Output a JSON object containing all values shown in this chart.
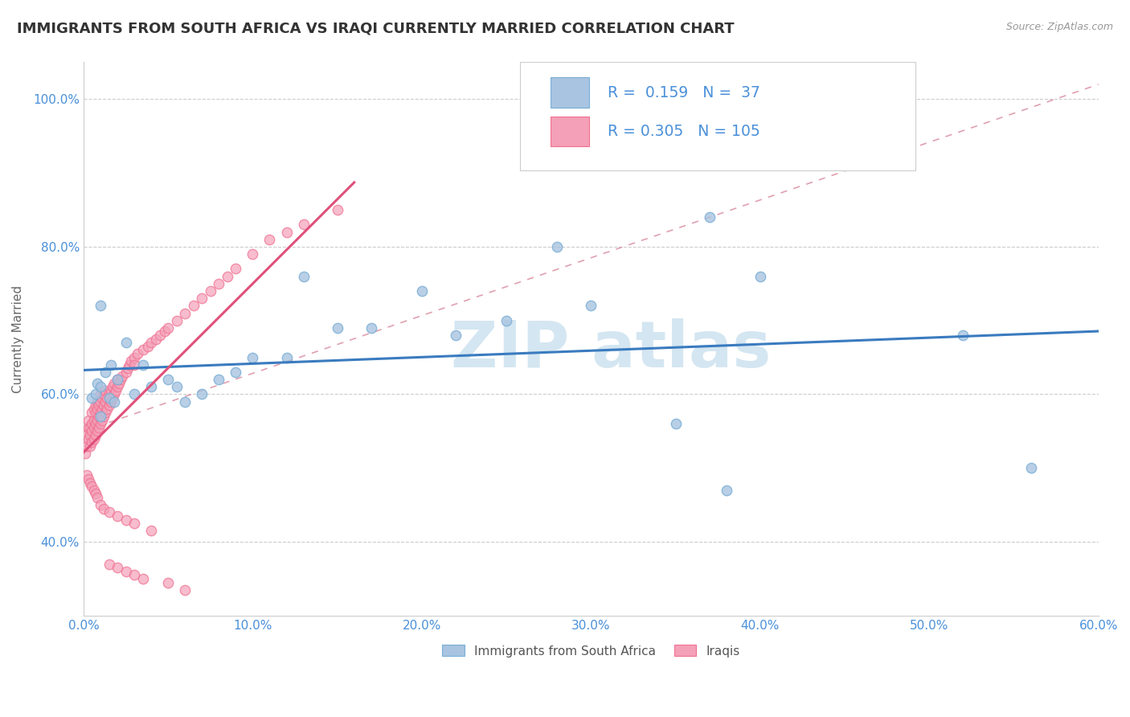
{
  "title": "IMMIGRANTS FROM SOUTH AFRICA VS IRAQI CURRENTLY MARRIED CORRELATION CHART",
  "source": "Source: ZipAtlas.com",
  "ylabel": "Currently Married",
  "xlim": [
    0.0,
    0.6
  ],
  "ylim": [
    0.3,
    1.05
  ],
  "xtick_labels": [
    "0.0%",
    "10.0%",
    "20.0%",
    "30.0%",
    "40.0%",
    "50.0%",
    "60.0%"
  ],
  "ytick_labels": [
    "40.0%",
    "60.0%",
    "80.0%",
    "100.0%"
  ],
  "ytick_vals": [
    0.4,
    0.6,
    0.8,
    1.0
  ],
  "xtick_vals": [
    0.0,
    0.1,
    0.2,
    0.3,
    0.4,
    0.5,
    0.6
  ],
  "legend_R1": "0.159",
  "legend_N1": "37",
  "legend_R2": "0.305",
  "legend_N2": "105",
  "color_sa_fill": "#a8c4e0",
  "color_iq_fill": "#f4a0b8",
  "color_sa_edge": "#7aaed6",
  "color_iq_edge": "#f07090",
  "color_trendline_sa": "#3a7bbf",
  "color_trendline_iq": "#e0507a",
  "color_refline": "#e0a0b0",
  "background_color": "#ffffff",
  "title_color": "#333333",
  "title_fontsize": 13,
  "tick_color": "#4a90d9",
  "legend_text_color": "#4a90d9",
  "watermark_color": "#d0e4f0",
  "sa_x": [
    0.005,
    0.007,
    0.008,
    0.01,
    0.01,
    0.01,
    0.013,
    0.015,
    0.016,
    0.018,
    0.02,
    0.025,
    0.03,
    0.035,
    0.04,
    0.05,
    0.055,
    0.06,
    0.07,
    0.08,
    0.09,
    0.1,
    0.12,
    0.13,
    0.15,
    0.17,
    0.2,
    0.22,
    0.25,
    0.28,
    0.3,
    0.35,
    0.37,
    0.4,
    0.52,
    0.56,
    0.38
  ],
  "sa_y": [
    0.595,
    0.6,
    0.615,
    0.72,
    0.57,
    0.61,
    0.63,
    0.595,
    0.64,
    0.59,
    0.62,
    0.67,
    0.6,
    0.64,
    0.61,
    0.62,
    0.61,
    0.59,
    0.6,
    0.62,
    0.63,
    0.65,
    0.65,
    0.76,
    0.69,
    0.69,
    0.74,
    0.68,
    0.7,
    0.8,
    0.72,
    0.56,
    0.84,
    0.76,
    0.68,
    0.5,
    0.47
  ],
  "iq_x": [
    0.001,
    0.002,
    0.002,
    0.003,
    0.003,
    0.003,
    0.004,
    0.004,
    0.004,
    0.005,
    0.005,
    0.005,
    0.005,
    0.006,
    0.006,
    0.006,
    0.006,
    0.007,
    0.007,
    0.007,
    0.007,
    0.008,
    0.008,
    0.008,
    0.008,
    0.009,
    0.009,
    0.009,
    0.01,
    0.01,
    0.01,
    0.01,
    0.011,
    0.011,
    0.011,
    0.012,
    0.012,
    0.012,
    0.013,
    0.013,
    0.013,
    0.014,
    0.014,
    0.015,
    0.015,
    0.016,
    0.016,
    0.017,
    0.017,
    0.018,
    0.018,
    0.019,
    0.02,
    0.02,
    0.021,
    0.022,
    0.023,
    0.025,
    0.026,
    0.027,
    0.028,
    0.03,
    0.03,
    0.032,
    0.035,
    0.038,
    0.04,
    0.043,
    0.045,
    0.048,
    0.05,
    0.055,
    0.06,
    0.065,
    0.07,
    0.075,
    0.08,
    0.085,
    0.09,
    0.1,
    0.11,
    0.12,
    0.13,
    0.15,
    0.002,
    0.003,
    0.004,
    0.005,
    0.006,
    0.007,
    0.008,
    0.01,
    0.012,
    0.015,
    0.02,
    0.025,
    0.03,
    0.04,
    0.015,
    0.02,
    0.025,
    0.03,
    0.035,
    0.05,
    0.06
  ],
  "iq_y": [
    0.52,
    0.53,
    0.545,
    0.54,
    0.555,
    0.565,
    0.53,
    0.545,
    0.555,
    0.535,
    0.55,
    0.56,
    0.575,
    0.54,
    0.555,
    0.565,
    0.58,
    0.545,
    0.56,
    0.575,
    0.585,
    0.55,
    0.565,
    0.58,
    0.59,
    0.555,
    0.57,
    0.585,
    0.56,
    0.575,
    0.59,
    0.6,
    0.565,
    0.58,
    0.595,
    0.57,
    0.585,
    0.6,
    0.575,
    0.59,
    0.605,
    0.58,
    0.595,
    0.585,
    0.6,
    0.59,
    0.605,
    0.595,
    0.61,
    0.6,
    0.615,
    0.605,
    0.61,
    0.62,
    0.615,
    0.62,
    0.625,
    0.63,
    0.635,
    0.64,
    0.645,
    0.65,
    0.64,
    0.655,
    0.66,
    0.665,
    0.67,
    0.675,
    0.68,
    0.685,
    0.69,
    0.7,
    0.71,
    0.72,
    0.73,
    0.74,
    0.75,
    0.76,
    0.77,
    0.79,
    0.81,
    0.82,
    0.83,
    0.85,
    0.49,
    0.485,
    0.48,
    0.475,
    0.47,
    0.465,
    0.46,
    0.45,
    0.445,
    0.44,
    0.435,
    0.43,
    0.425,
    0.415,
    0.37,
    0.365,
    0.36,
    0.355,
    0.35,
    0.345,
    0.335
  ]
}
